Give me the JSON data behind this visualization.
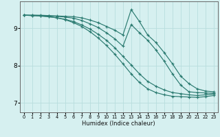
{
  "background_color": "#d6f0f0",
  "grid_color": "#b8dede",
  "line_color": "#2a7a70",
  "xlabel": "Humidex (Indice chaleur)",
  "xlim": [
    -0.5,
    23.5
  ],
  "ylim": [
    6.75,
    9.72
  ],
  "yticks": [
    7,
    8,
    9
  ],
  "xticks": [
    0,
    1,
    2,
    3,
    4,
    5,
    6,
    7,
    8,
    9,
    10,
    11,
    12,
    13,
    14,
    15,
    16,
    17,
    18,
    19,
    20,
    21,
    22,
    23
  ],
  "series": [
    {
      "x": [
        0,
        1,
        2,
        3,
        4,
        5,
        6,
        7,
        8,
        9,
        10,
        11,
        12,
        13,
        14,
        15,
        16,
        17,
        18,
        19,
        20,
        21,
        22,
        23
      ],
      "y": [
        9.35,
        9.35,
        9.35,
        9.34,
        9.33,
        9.32,
        9.31,
        9.28,
        9.22,
        9.15,
        9.05,
        8.95,
        8.82,
        9.5,
        9.18,
        8.82,
        8.62,
        8.35,
        8.05,
        7.72,
        7.52,
        7.38,
        7.32,
        7.3
      ]
    },
    {
      "x": [
        0,
        1,
        2,
        3,
        4,
        5,
        6,
        7,
        8,
        9,
        10,
        11,
        12,
        13,
        14,
        15,
        16,
        17,
        18,
        19,
        20,
        21,
        22,
        23
      ],
      "y": [
        9.35,
        9.35,
        9.34,
        9.33,
        9.32,
        9.3,
        9.27,
        9.21,
        9.12,
        9.02,
        8.88,
        8.72,
        8.52,
        9.1,
        8.88,
        8.68,
        8.42,
        8.12,
        7.78,
        7.48,
        7.3,
        7.28,
        7.27,
        7.26
      ]
    },
    {
      "x": [
        0,
        1,
        2,
        3,
        4,
        5,
        6,
        7,
        8,
        9,
        10,
        11,
        12,
        13,
        14,
        15,
        16,
        17,
        18,
        19,
        20,
        21,
        22,
        23
      ],
      "y": [
        9.35,
        9.34,
        9.33,
        9.31,
        9.28,
        9.24,
        9.18,
        9.09,
        8.98,
        8.84,
        8.68,
        8.48,
        8.25,
        8.02,
        7.78,
        7.58,
        7.45,
        7.35,
        7.28,
        7.25,
        7.22,
        7.2,
        7.22,
        7.24
      ]
    },
    {
      "x": [
        0,
        1,
        2,
        3,
        4,
        5,
        6,
        7,
        8,
        9,
        10,
        11,
        12,
        13,
        14,
        15,
        16,
        17,
        18,
        19,
        20,
        21,
        22,
        23
      ],
      "y": [
        9.35,
        9.34,
        9.33,
        9.31,
        9.28,
        9.23,
        9.15,
        9.05,
        8.91,
        8.74,
        8.54,
        8.31,
        8.05,
        7.78,
        7.55,
        7.38,
        7.28,
        7.22,
        7.18,
        7.17,
        7.16,
        7.15,
        7.17,
        7.2
      ]
    }
  ]
}
